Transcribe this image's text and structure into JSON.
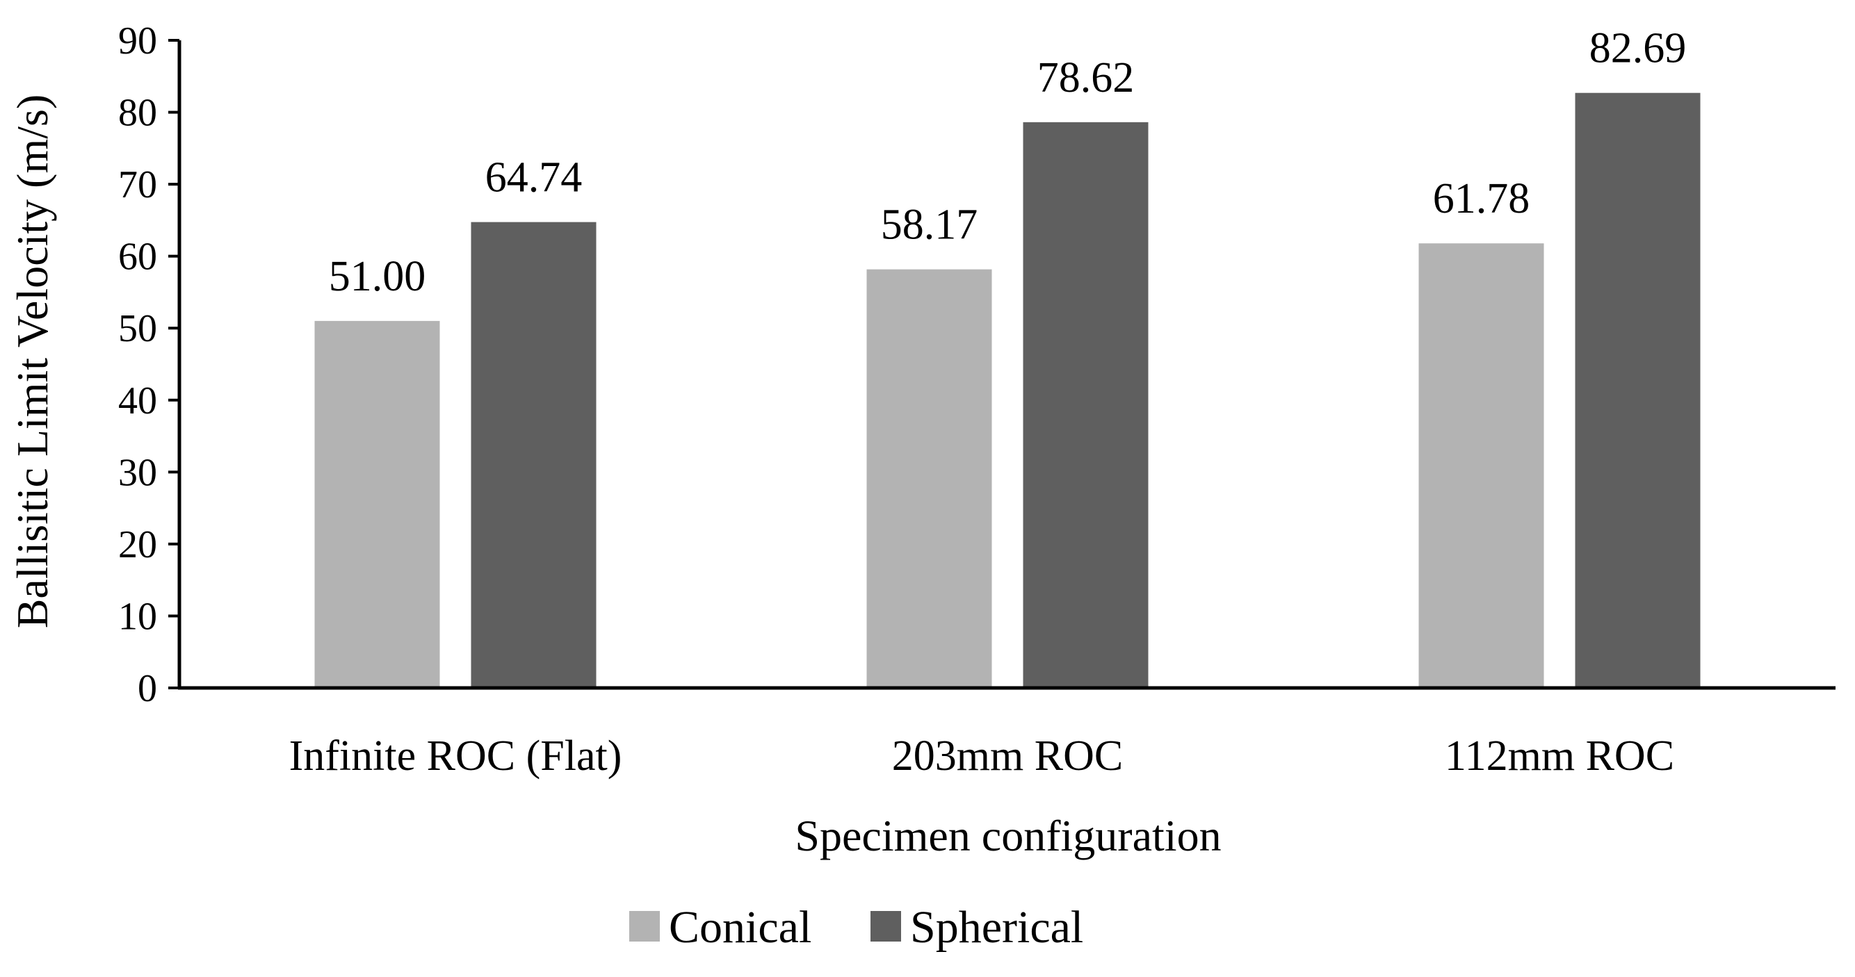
{
  "chart_data": {
    "type": "bar",
    "title": "",
    "xlabel": "Specimen configuration",
    "ylabel": "Ballisitic Limit Velocity (m/s)",
    "categories": [
      "Infinite ROC (Flat)",
      "203mm ROC",
      "112mm ROC"
    ],
    "series": [
      {
        "name": "Conical",
        "color": "#b3b3b3",
        "values": [
          51.0,
          58.17,
          61.78
        ],
        "labels": [
          "51.00",
          "58.17",
          "61.78"
        ]
      },
      {
        "name": "Spherical",
        "color": "#5f5f5f",
        "values": [
          64.74,
          78.62,
          82.69
        ],
        "labels": [
          "64.74",
          "78.62",
          "82.69"
        ]
      }
    ],
    "ylim": [
      0,
      90
    ],
    "yticks": [
      "0",
      "10",
      "20",
      "30",
      "40",
      "50",
      "60",
      "70",
      "80",
      "90"
    ],
    "grid": false,
    "legend": "bottom-center"
  }
}
